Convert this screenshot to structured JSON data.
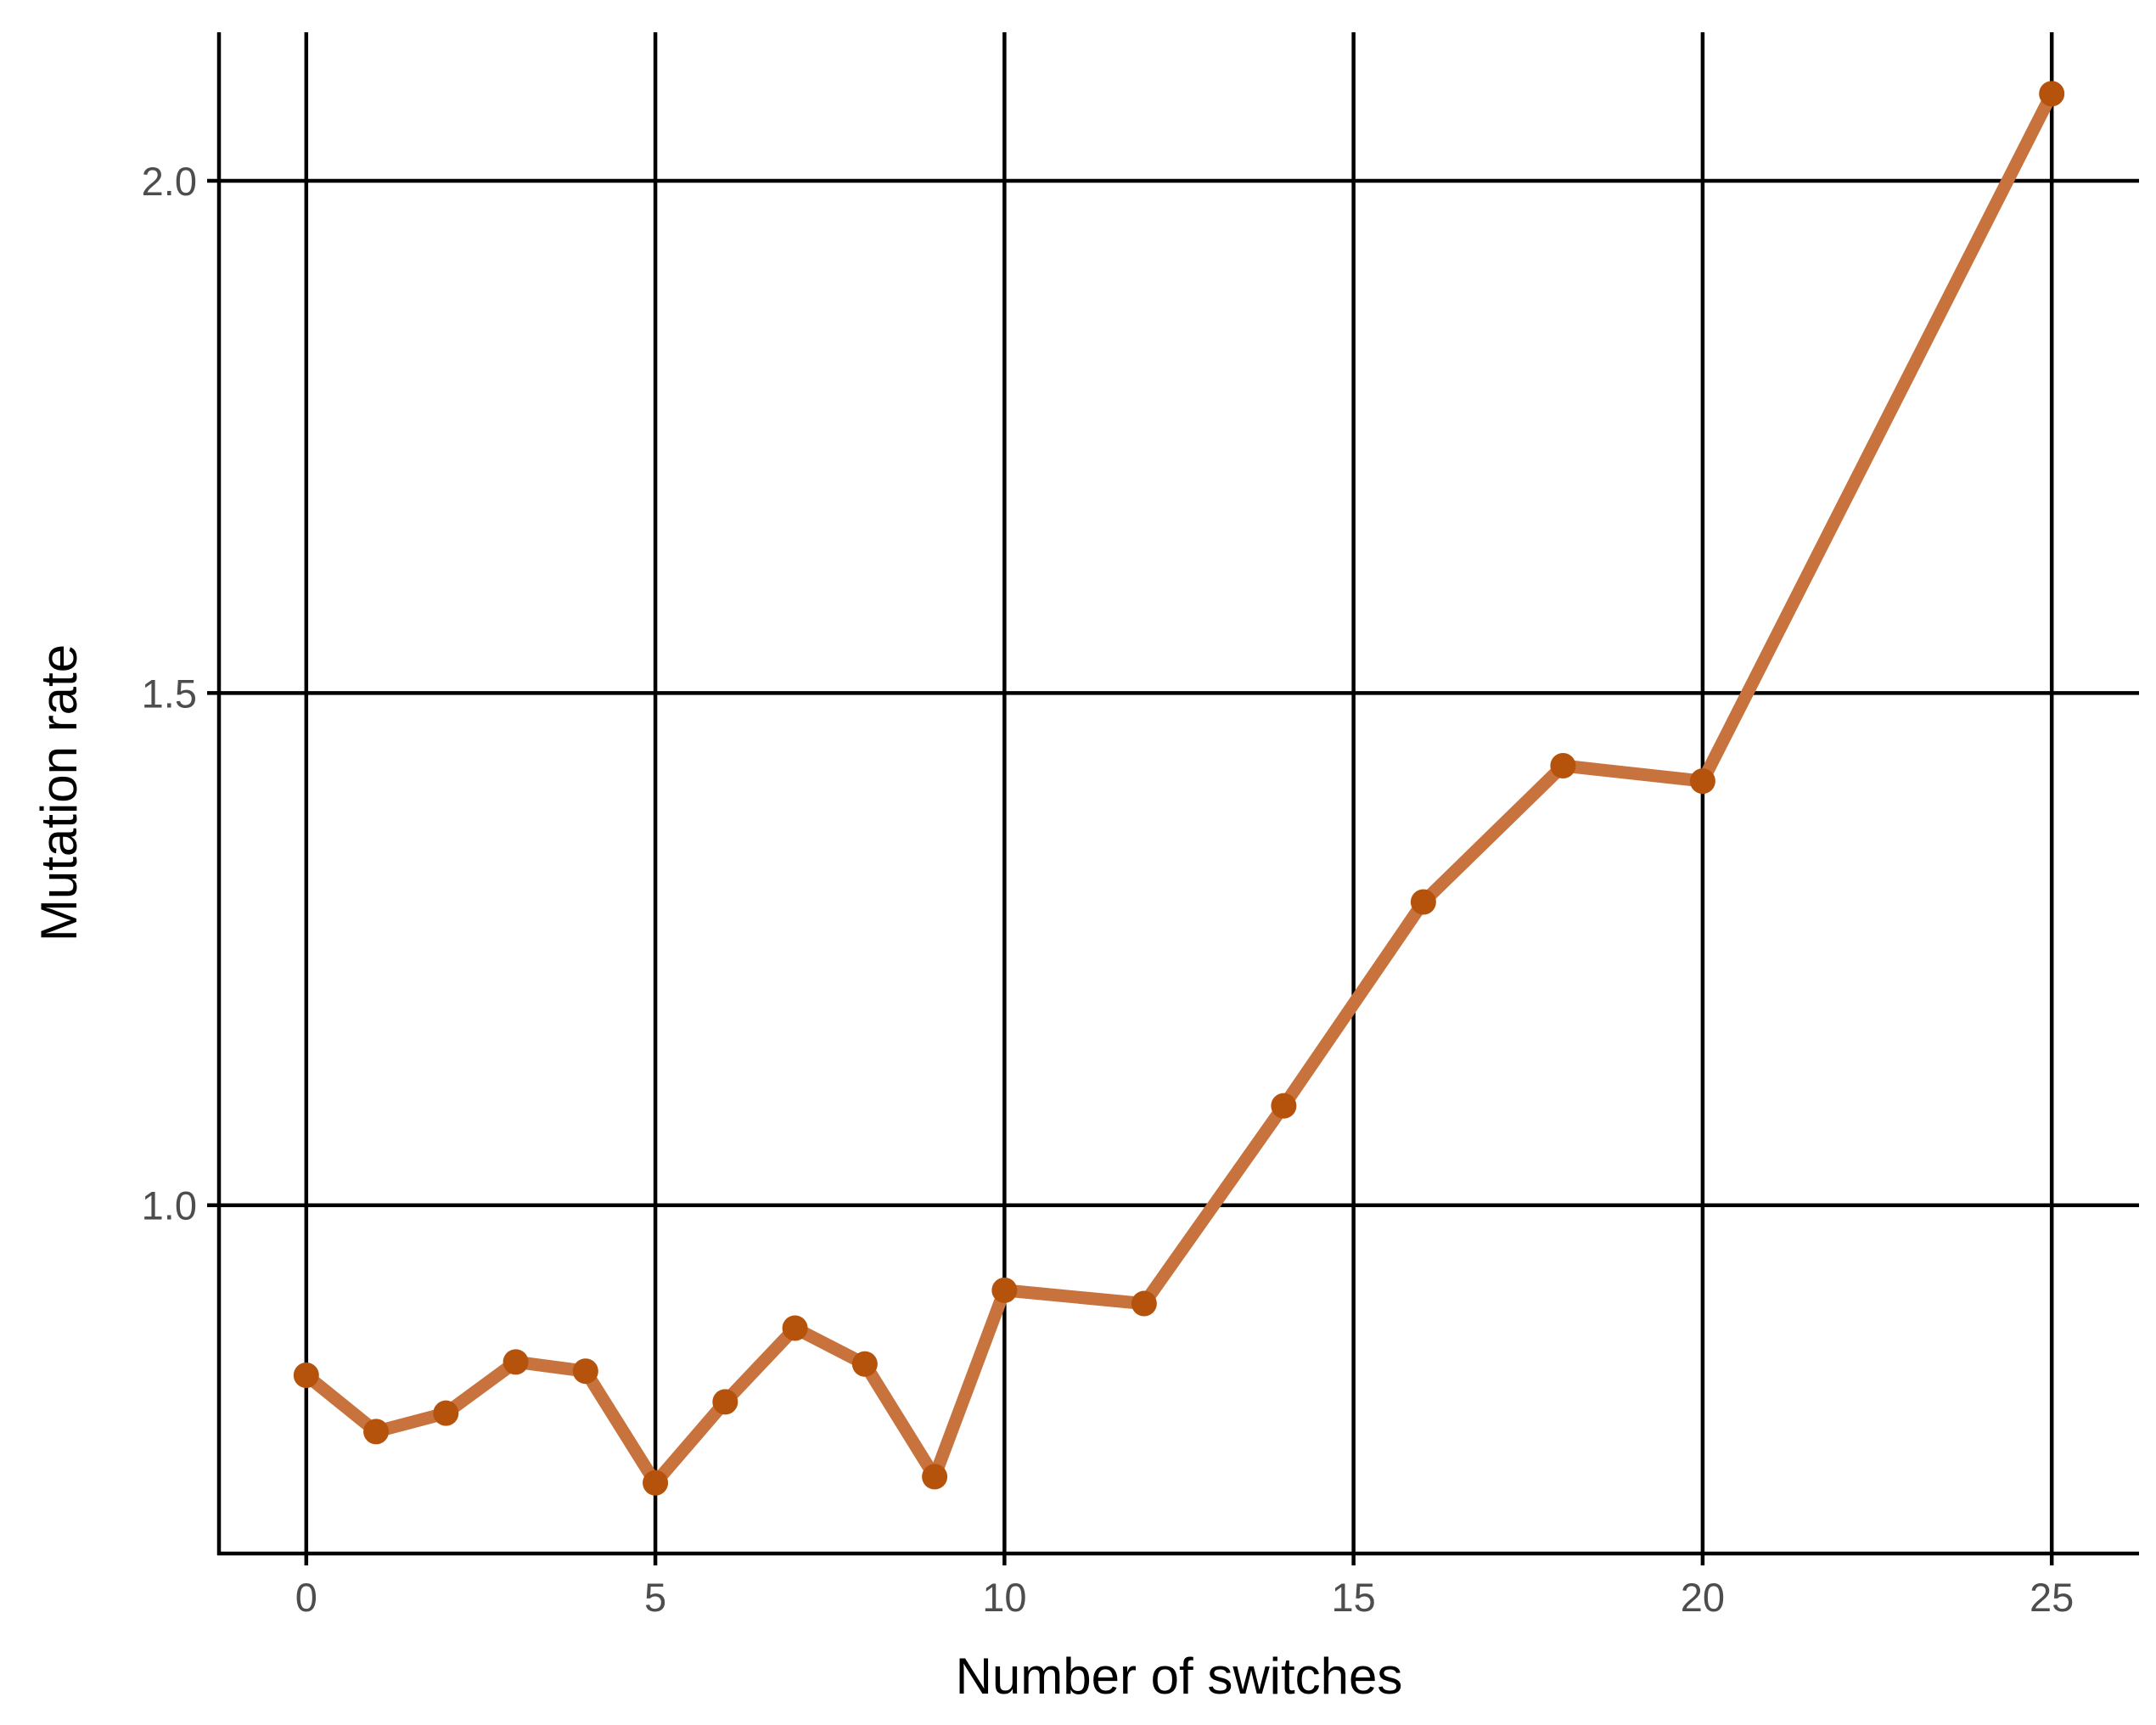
{
  "chart_data": {
    "type": "line",
    "title": "",
    "xlabel": "Number of switches",
    "ylabel": "Mutation rate",
    "xlim": [
      -1.25,
      26.25
    ],
    "ylim": [
      0.66,
      2.145
    ],
    "x_ticks": [
      0,
      5,
      10,
      15,
      20,
      25
    ],
    "x_tick_labels": [
      "0",
      "5",
      "10",
      "15",
      "20",
      "25"
    ],
    "y_ticks": [
      1.0,
      1.5,
      2.0
    ],
    "y_tick_labels": [
      "1.0",
      "1.5",
      "2.0"
    ],
    "grid": true,
    "legend": "none",
    "colors": {
      "line": "#c8723d",
      "point": "#b5530d",
      "grid": "#000000",
      "axis": "#000000",
      "tick_label": "#4d4d4d"
    },
    "series": [
      {
        "x": [
          0,
          1,
          2,
          3,
          4,
          5,
          6,
          7,
          8,
          9,
          10,
          12,
          14,
          16,
          18,
          20,
          25
        ],
        "values": [
          0.834,
          0.779,
          0.797,
          0.847,
          0.838,
          0.729,
          0.808,
          0.88,
          0.845,
          0.735,
          0.917,
          0.904,
          1.097,
          1.296,
          1.429,
          1.414,
          2.085
        ]
      }
    ]
  }
}
